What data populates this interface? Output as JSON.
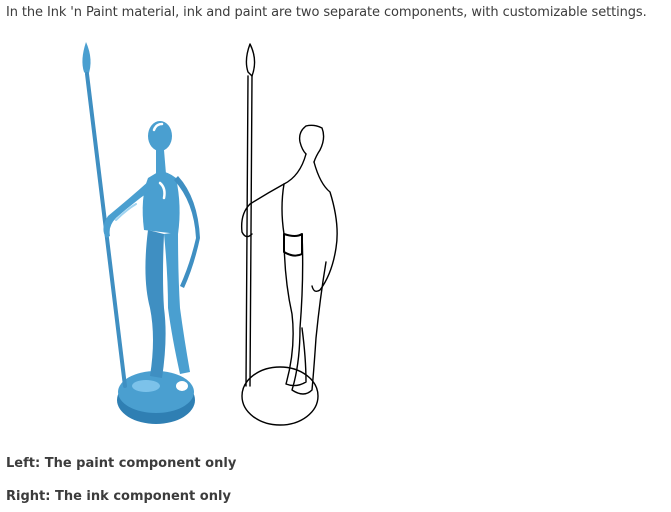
{
  "intro_text": "In the Ink 'n Paint material, ink and paint are two separate components, with customizable settings.",
  "figure": {
    "paint_color": "#4a9fd0",
    "ink_color": "#000000"
  },
  "captions": {
    "left": "Left: The paint component only",
    "right": "Right: The ink component only"
  }
}
